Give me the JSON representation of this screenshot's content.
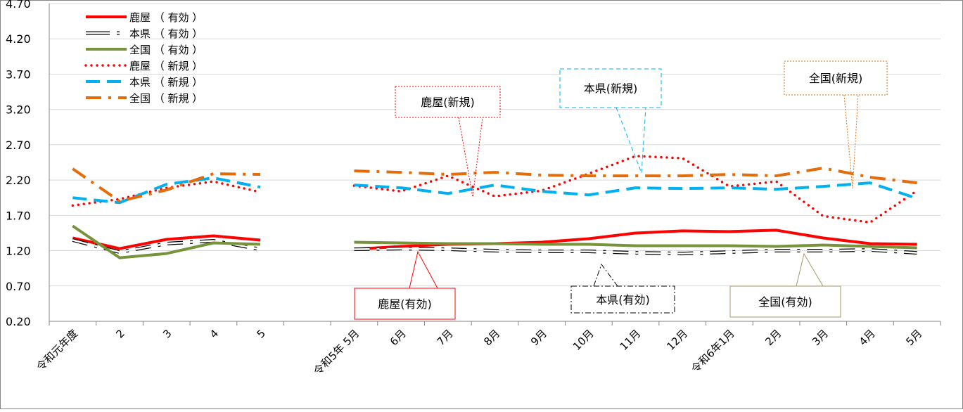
{
  "chart_data": {
    "type": "line",
    "categories": [
      "令和元年度",
      "2",
      "3",
      "4",
      "5",
      "",
      "令和5年 5月",
      "6月",
      "7月",
      "8月",
      "9月",
      "10月",
      "11月",
      "12月",
      "令和6年1月",
      "2月",
      "3月",
      "4月",
      "5月"
    ],
    "ylim": [
      0.2,
      4.7
    ],
    "yticks": [
      "0.20",
      "0.70",
      "1.20",
      "1.70",
      "2.20",
      "2.70",
      "3.20",
      "3.70",
      "4.20",
      "4.70"
    ],
    "grid": true,
    "legend_position": "top-left",
    "series": [
      {
        "name": "鹿屋 （ 有効 ）",
        "color": "#ff0000",
        "style": "solid",
        "width": 4,
        "values": [
          1.38,
          1.23,
          1.36,
          1.41,
          1.35,
          null,
          1.22,
          1.26,
          1.29,
          1.3,
          1.32,
          1.37,
          1.45,
          1.48,
          1.47,
          1.49,
          1.38,
          1.3,
          1.29
        ]
      },
      {
        "name": "本県 （ 有効 ）",
        "color": "#000000",
        "style": "dot-outline",
        "width": 4,
        "values": [
          1.35,
          1.18,
          1.3,
          1.34,
          1.22,
          null,
          1.22,
          1.23,
          1.22,
          1.2,
          1.19,
          1.19,
          1.17,
          1.16,
          1.18,
          1.2,
          1.2,
          1.21,
          1.17
        ]
      },
      {
        "name": "全国 （ 有効 ）",
        "color": "#77933c",
        "style": "solid",
        "width": 4,
        "values": [
          1.55,
          1.1,
          1.16,
          1.31,
          1.29,
          null,
          1.32,
          1.31,
          1.3,
          1.3,
          1.29,
          1.29,
          1.27,
          1.27,
          1.27,
          1.26,
          1.28,
          1.26,
          1.24
        ]
      },
      {
        "name": "鹿屋 （ 新規 ）",
        "color": "#ff0000",
        "style": "dotted",
        "width": 3.5,
        "values": [
          1.84,
          1.93,
          2.09,
          2.18,
          2.03,
          null,
          2.12,
          2.04,
          2.26,
          1.97,
          2.05,
          2.29,
          2.54,
          2.51,
          2.11,
          2.18,
          1.69,
          1.6,
          2.05
        ]
      },
      {
        "name": "本県 （ 新規 ）",
        "color": "#00b0f0",
        "style": "dashed",
        "width": 4,
        "values": [
          1.95,
          1.88,
          2.14,
          2.23,
          2.1,
          null,
          2.13,
          2.09,
          2.01,
          2.13,
          2.04,
          1.99,
          2.09,
          2.08,
          2.09,
          2.07,
          2.11,
          2.16,
          1.94
        ]
      },
      {
        "name": "全国 （  新規 ）",
        "color": "#e46c0a",
        "style": "dash-dot",
        "width": 4,
        "values": [
          2.36,
          1.9,
          2.06,
          2.29,
          2.28,
          null,
          2.33,
          2.31,
          2.28,
          2.31,
          2.27,
          2.26,
          2.26,
          2.26,
          2.28,
          2.26,
          2.37,
          2.24,
          2.16
        ]
      }
    ],
    "annotations": [
      {
        "label": "鹿屋(新規)",
        "color": "#ff0000",
        "border": "dotted"
      },
      {
        "label": "本県(新規)",
        "color": "#00b0f0",
        "border": "dashed"
      },
      {
        "label": "全国(新規)",
        "color": "#e46c0a",
        "border": "dotted"
      },
      {
        "label": "鹿屋(有効)",
        "color": "#ff0000",
        "border": "solid"
      },
      {
        "label": "本県(有効)",
        "color": "#000000",
        "border": "dashdot"
      },
      {
        "label": "全国(有効)",
        "color": "#a69a6b",
        "border": "solid"
      }
    ]
  }
}
